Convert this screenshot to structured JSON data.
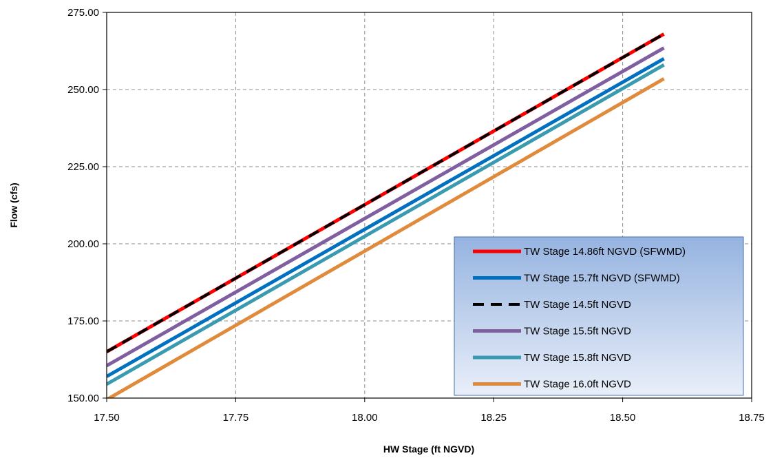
{
  "chart_data": {
    "type": "line",
    "title": "",
    "xlabel": "HW Stage (ft NGVD)",
    "ylabel": "Flow (cfs)",
    "xlim": [
      17.5,
      18.75
    ],
    "ylim": [
      150,
      275
    ],
    "xticks": [
      "17.50",
      "17.75",
      "18.00",
      "18.25",
      "18.50",
      "18.75"
    ],
    "yticks": [
      "150.00",
      "175.00",
      "200.00",
      "225.00",
      "250.00",
      "275.00"
    ],
    "grid": true,
    "legend_position": "lower-right",
    "series": [
      {
        "name": "TW Stage 14.86ft NGVD (SFWMD)",
        "color": "#ff0000",
        "dashed": false,
        "x": [
          17.5,
          18.58
        ],
        "y": [
          165.0,
          268.0
        ]
      },
      {
        "name": "TW Stage 15.7ft NGVD (SFWMD)",
        "color": "#0070c0",
        "dashed": false,
        "x": [
          17.5,
          18.58
        ],
        "y": [
          157.0,
          260.0
        ]
      },
      {
        "name": "TW Stage 14.5ft NGVD",
        "color": "#000000",
        "dashed": true,
        "x": [
          17.5,
          18.58
        ],
        "y": [
          165.0,
          268.0
        ]
      },
      {
        "name": "TW Stage 15.5ft NGVD",
        "color": "#7f5fa0",
        "dashed": false,
        "x": [
          17.5,
          18.58
        ],
        "y": [
          160.5,
          263.5
        ]
      },
      {
        "name": "TW Stage 15.8ft NGVD",
        "color": "#3a9bb0",
        "dashed": false,
        "x": [
          17.5,
          18.58
        ],
        "y": [
          154.5,
          258.0
        ]
      },
      {
        "name": "TW Stage 16.0ft NGVD",
        "color": "#e08a3c",
        "dashed": false,
        "x": [
          17.5,
          18.58
        ],
        "y": [
          149.5,
          253.5
        ]
      }
    ]
  }
}
